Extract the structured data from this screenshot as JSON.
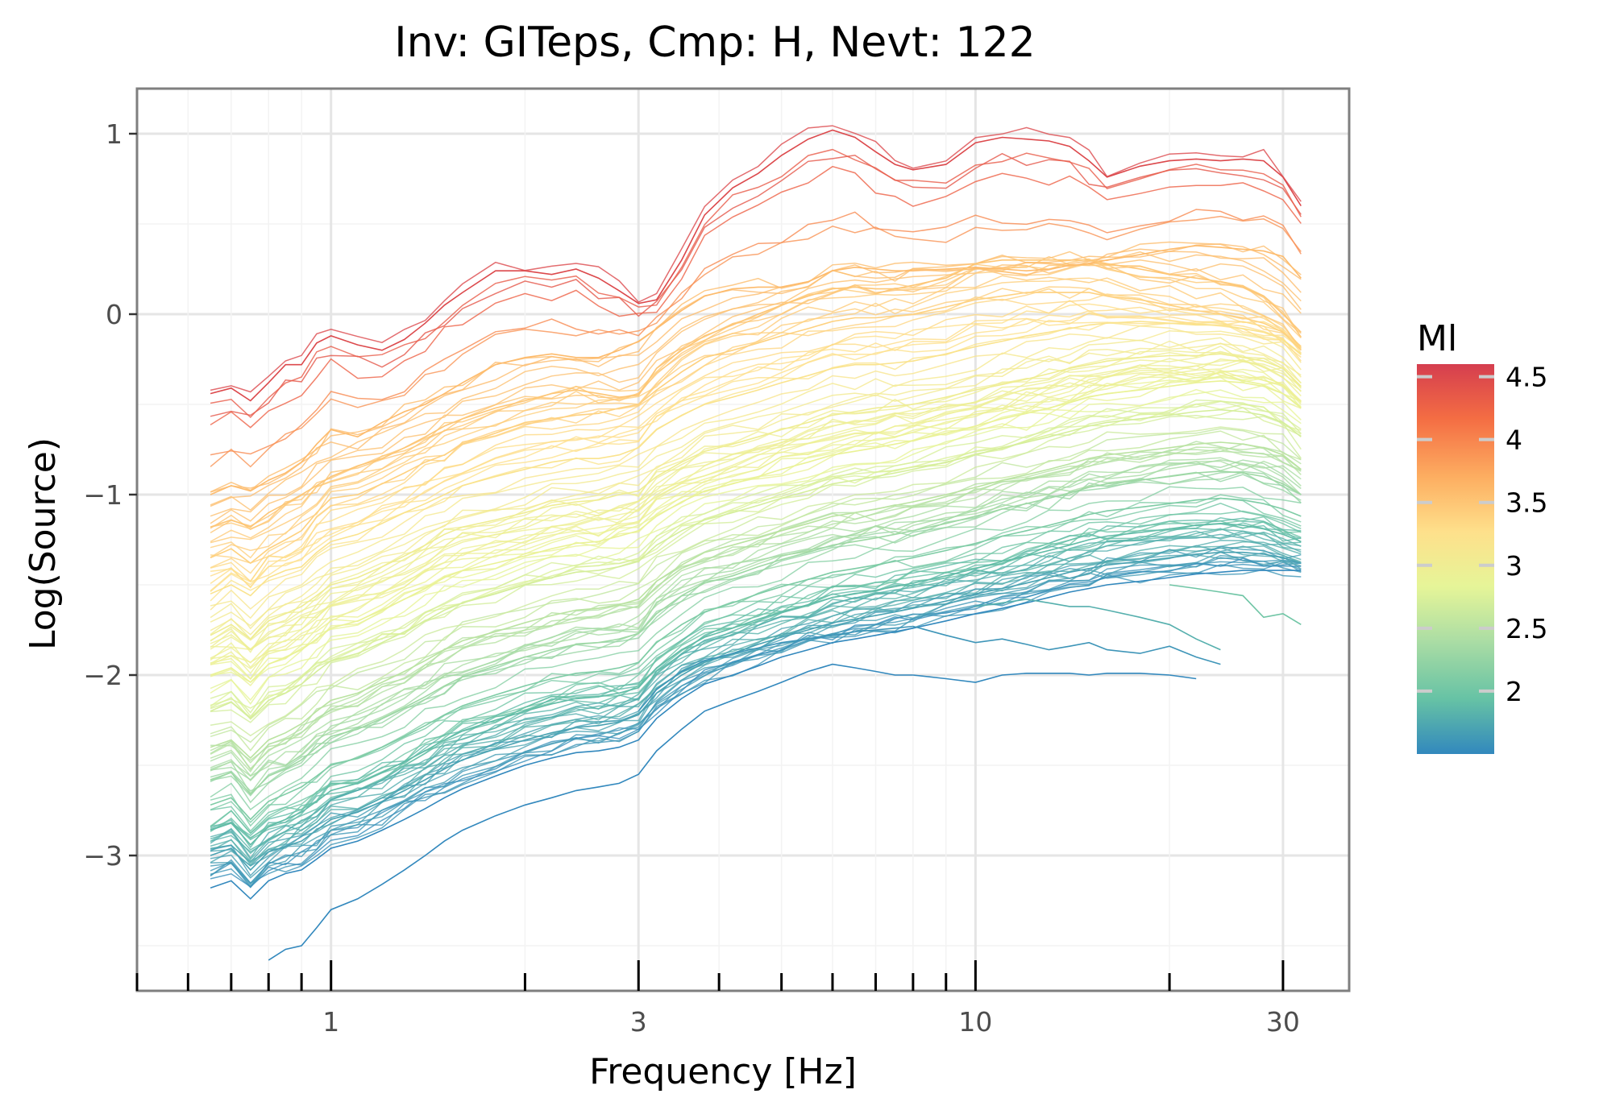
{
  "chart_data": {
    "type": "line",
    "title": "Inv: GITeps, Cmp: H, Nevt: 122",
    "xlabel": "Frequency [Hz]",
    "ylabel": "Log(Source)",
    "x_scale": "log10",
    "xlim": [
      0.5,
      38
    ],
    "ylim": [
      -3.75,
      1.25
    ],
    "x_ticks": [
      1,
      3,
      10,
      30
    ],
    "x_tick_labels": [
      "1",
      "3",
      "10",
      "30"
    ],
    "y_ticks": [
      1,
      0,
      -1,
      -2,
      -3
    ],
    "y_tick_labels": [
      "1",
      "0",
      "−1",
      "−2",
      "−3"
    ],
    "grid": true,
    "frequency_hz": [
      0.65,
      0.7,
      0.75,
      0.8,
      0.85,
      0.9,
      0.95,
      1.0,
      1.1,
      1.2,
      1.3,
      1.4,
      1.5,
      1.6,
      1.8,
      2.0,
      2.2,
      2.4,
      2.6,
      2.8,
      3.0,
      3.2,
      3.5,
      3.8,
      4.2,
      4.6,
      5.0,
      5.5,
      6.0,
      6.5,
      7.0,
      7.5,
      8.0,
      9.0,
      10.0,
      11.0,
      12.0,
      13.0,
      14.0,
      15.0,
      16.0,
      18.0,
      20.0,
      22.0,
      24.0,
      26.0,
      28.0,
      30.0,
      32.0
    ],
    "series_count": 122,
    "series": [
      {
        "ml": 4.5,
        "values": [
          -0.44,
          -0.41,
          -0.48,
          -0.38,
          -0.28,
          -0.28,
          -0.16,
          -0.12,
          -0.17,
          -0.2,
          -0.14,
          -0.05,
          0.05,
          0.12,
          0.24,
          0.24,
          0.22,
          0.25,
          0.2,
          0.13,
          0.06,
          0.08,
          0.3,
          0.55,
          0.7,
          0.78,
          0.88,
          0.97,
          1.02,
          0.98,
          0.9,
          0.83,
          0.8,
          0.83,
          0.95,
          0.98,
          0.97,
          0.96,
          0.93,
          0.85,
          0.76,
          0.82,
          0.85,
          0.86,
          0.85,
          0.86,
          0.85,
          0.76,
          0.6
        ]
      },
      {
        "ml": 3.6,
        "values": [
          -1.0,
          -0.95,
          -0.98,
          -0.92,
          -0.88,
          -0.82,
          -0.72,
          -0.64,
          -0.68,
          -0.6,
          -0.54,
          -0.5,
          -0.44,
          -0.38,
          -0.28,
          -0.24,
          -0.22,
          -0.24,
          -0.24,
          -0.2,
          -0.15,
          -0.08,
          0.02,
          0.1,
          0.14,
          0.15,
          0.15,
          0.18,
          0.24,
          0.26,
          0.25,
          0.24,
          0.24,
          0.25,
          0.26,
          0.25,
          0.24,
          0.25,
          0.27,
          0.28,
          0.3,
          0.33,
          0.36,
          0.38,
          0.37,
          0.36,
          0.35,
          0.32,
          0.2
        ]
      },
      {
        "ml": 3.5,
        "values": [
          -1.18,
          -1.14,
          -1.18,
          -1.1,
          -1.05,
          -1.0,
          -0.95,
          -0.9,
          -0.84,
          -0.8,
          -0.74,
          -0.68,
          -0.62,
          -0.58,
          -0.52,
          -0.48,
          -0.44,
          -0.42,
          -0.44,
          -0.46,
          -0.45,
          -0.3,
          -0.2,
          -0.12,
          -0.06,
          0.0,
          0.05,
          0.1,
          0.14,
          0.15,
          0.14,
          0.14,
          0.16,
          0.2,
          0.28,
          0.3,
          0.3,
          0.3,
          0.3,
          0.3,
          0.28,
          0.25,
          0.22,
          0.2,
          0.18,
          0.15,
          0.1,
          0.0,
          -0.1
        ]
      },
      {
        "ml": 3.4,
        "values": [
          -1.35,
          -1.3,
          -1.38,
          -1.3,
          -1.25,
          -1.2,
          -1.1,
          -1.02,
          -1.0,
          -0.94,
          -0.88,
          -0.82,
          -0.78,
          -0.72,
          -0.66,
          -0.6,
          -0.58,
          -0.56,
          -0.55,
          -0.52,
          -0.5,
          -0.42,
          -0.32,
          -0.24,
          -0.2,
          -0.16,
          -0.12,
          -0.08,
          -0.04,
          -0.02,
          -0.02,
          -0.01,
          0.0,
          0.04,
          0.08,
          0.1,
          0.12,
          0.12,
          0.12,
          0.12,
          0.1,
          0.08,
          0.05,
          0.02,
          0.0,
          -0.02,
          -0.05,
          -0.1,
          -0.2
        ]
      },
      {
        "ml": 3.2,
        "values": [
          -1.55,
          -1.5,
          -1.56,
          -1.46,
          -1.42,
          -1.4,
          -1.32,
          -1.26,
          -1.22,
          -1.16,
          -1.1,
          -1.05,
          -1.0,
          -0.95,
          -0.9,
          -0.86,
          -0.82,
          -0.8,
          -0.8,
          -0.78,
          -0.74,
          -0.64,
          -0.56,
          -0.5,
          -0.46,
          -0.42,
          -0.38,
          -0.34,
          -0.3,
          -0.28,
          -0.28,
          -0.27,
          -0.26,
          -0.22,
          -0.18,
          -0.15,
          -0.12,
          -0.1,
          -0.08,
          -0.06,
          -0.05,
          -0.04,
          -0.05,
          -0.06,
          -0.06,
          -0.08,
          -0.1,
          -0.14,
          -0.22
        ]
      },
      {
        "ml": 3.0,
        "values": [
          -1.78,
          -1.72,
          -1.8,
          -1.7,
          -1.66,
          -1.62,
          -1.56,
          -1.5,
          -1.46,
          -1.4,
          -1.34,
          -1.28,
          -1.22,
          -1.18,
          -1.14,
          -1.1,
          -1.06,
          -1.04,
          -1.03,
          -1.0,
          -0.98,
          -0.9,
          -0.82,
          -0.76,
          -0.72,
          -0.68,
          -0.64,
          -0.6,
          -0.56,
          -0.54,
          -0.52,
          -0.51,
          -0.5,
          -0.46,
          -0.42,
          -0.39,
          -0.36,
          -0.33,
          -0.3,
          -0.28,
          -0.26,
          -0.24,
          -0.23,
          -0.23,
          -0.22,
          -0.24,
          -0.26,
          -0.3,
          -0.4
        ]
      },
      {
        "ml": 2.9,
        "values": [
          -2.0,
          -1.96,
          -2.04,
          -1.94,
          -1.9,
          -1.86,
          -1.8,
          -1.74,
          -1.7,
          -1.64,
          -1.58,
          -1.52,
          -1.46,
          -1.42,
          -1.38,
          -1.34,
          -1.3,
          -1.27,
          -1.26,
          -1.23,
          -1.2,
          -1.12,
          -1.04,
          -0.98,
          -0.94,
          -0.9,
          -0.86,
          -0.82,
          -0.78,
          -0.76,
          -0.74,
          -0.72,
          -0.7,
          -0.66,
          -0.62,
          -0.58,
          -0.55,
          -0.52,
          -0.49,
          -0.46,
          -0.44,
          -0.42,
          -0.4,
          -0.38,
          -0.37,
          -0.38,
          -0.4,
          -0.44,
          -0.52
        ]
      },
      {
        "ml": 2.7,
        "values": [
          -2.2,
          -2.15,
          -2.24,
          -2.14,
          -2.1,
          -2.05,
          -1.98,
          -1.92,
          -1.88,
          -1.82,
          -1.76,
          -1.7,
          -1.64,
          -1.6,
          -1.55,
          -1.5,
          -1.46,
          -1.43,
          -1.42,
          -1.4,
          -1.37,
          -1.28,
          -1.2,
          -1.14,
          -1.1,
          -1.06,
          -1.02,
          -0.98,
          -0.94,
          -0.92,
          -0.9,
          -0.88,
          -0.86,
          -0.82,
          -0.78,
          -0.74,
          -0.71,
          -0.68,
          -0.65,
          -0.62,
          -0.6,
          -0.58,
          -0.56,
          -0.54,
          -0.53,
          -0.54,
          -0.56,
          -0.6,
          -0.68
        ]
      },
      {
        "ml": 2.5,
        "values": [
          -2.4,
          -2.36,
          -2.46,
          -2.36,
          -2.32,
          -2.27,
          -2.2,
          -2.14,
          -2.1,
          -2.04,
          -1.98,
          -1.92,
          -1.86,
          -1.81,
          -1.76,
          -1.71,
          -1.67,
          -1.64,
          -1.63,
          -1.61,
          -1.58,
          -1.48,
          -1.39,
          -1.32,
          -1.28,
          -1.24,
          -1.2,
          -1.16,
          -1.12,
          -1.1,
          -1.08,
          -1.06,
          -1.04,
          -1.0,
          -0.96,
          -0.92,
          -0.89,
          -0.86,
          -0.83,
          -0.8,
          -0.78,
          -0.76,
          -0.74,
          -0.72,
          -0.71,
          -0.72,
          -0.74,
          -0.78,
          -0.86
        ]
      },
      {
        "ml": 2.3,
        "values": [
          -2.58,
          -2.54,
          -2.66,
          -2.56,
          -2.52,
          -2.47,
          -2.4,
          -2.34,
          -2.3,
          -2.24,
          -2.18,
          -2.12,
          -2.06,
          -2.01,
          -1.95,
          -1.9,
          -1.86,
          -1.83,
          -1.82,
          -1.8,
          -1.77,
          -1.66,
          -1.56,
          -1.49,
          -1.45,
          -1.4,
          -1.36,
          -1.32,
          -1.28,
          -1.26,
          -1.24,
          -1.22,
          -1.2,
          -1.16,
          -1.12,
          -1.08,
          -1.05,
          -1.02,
          -0.99,
          -0.96,
          -0.94,
          -0.92,
          -0.9,
          -0.88,
          -0.87,
          -0.88,
          -0.9,
          -0.94,
          -1.0
        ]
      },
      {
        "ml": 2.1,
        "values": [
          -2.72,
          -2.68,
          -2.8,
          -2.7,
          -2.66,
          -2.62,
          -2.56,
          -2.5,
          -2.46,
          -2.4,
          -2.34,
          -2.28,
          -2.22,
          -2.17,
          -2.11,
          -2.06,
          -2.02,
          -1.99,
          -1.98,
          -1.96,
          -1.93,
          -1.82,
          -1.72,
          -1.65,
          -1.6,
          -1.55,
          -1.51,
          -1.47,
          -1.43,
          -1.41,
          -1.39,
          -1.37,
          -1.35,
          -1.31,
          -1.27,
          -1.23,
          -1.2,
          -1.17,
          -1.14,
          -1.11,
          -1.09,
          -1.07,
          -1.05,
          -1.03,
          -1.02,
          -1.03,
          -1.05,
          -1.08,
          -1.12
        ]
      },
      {
        "ml": 1.9,
        "values": [
          -2.86,
          -2.82,
          -2.94,
          -2.84,
          -2.8,
          -2.76,
          -2.7,
          -2.64,
          -2.6,
          -2.54,
          -2.48,
          -2.42,
          -2.36,
          -2.31,
          -2.25,
          -2.2,
          -2.16,
          -2.13,
          -2.12,
          -2.1,
          -2.07,
          -1.96,
          -1.86,
          -1.79,
          -1.74,
          -1.69,
          -1.65,
          -1.61,
          -1.57,
          -1.55,
          -1.53,
          -1.51,
          -1.49,
          -1.45,
          -1.41,
          -1.37,
          -1.34,
          -1.31,
          -1.28,
          -1.25,
          -1.23,
          -1.21,
          -1.19,
          -1.17,
          -1.16,
          -1.17,
          -1.19,
          -1.22,
          -1.26
        ]
      },
      {
        "ml": 1.7,
        "values": [
          -3.0,
          -2.96,
          -3.08,
          -2.98,
          -2.95,
          -2.92,
          -2.86,
          -2.8,
          -2.76,
          -2.7,
          -2.64,
          -2.58,
          -2.52,
          -2.47,
          -2.41,
          -2.36,
          -2.32,
          -2.29,
          -2.28,
          -2.26,
          -2.22,
          -2.1,
          -2.0,
          -1.93,
          -1.88,
          -1.83,
          -1.79,
          -1.75,
          -1.71,
          -1.69,
          -1.67,
          -1.65,
          -1.63,
          -1.59,
          -1.55,
          -1.52,
          -1.49,
          -1.46,
          -1.43,
          -1.41,
          -1.39,
          -1.37,
          -1.35,
          -1.33,
          -1.32,
          -1.32,
          -1.33,
          -1.35,
          -1.38
        ]
      },
      {
        "ml": 1.5,
        "values": [
          -3.18,
          -3.14,
          -3.24,
          -3.14,
          -3.1,
          -3.08,
          -3.02,
          -2.96,
          -2.92,
          -2.86,
          -2.8,
          -2.74,
          -2.68,
          -2.63,
          -2.56,
          -2.5,
          -2.46,
          -2.43,
          -2.42,
          -2.4,
          -2.36,
          -2.24,
          -2.13,
          -2.05,
          -2.0,
          -1.95,
          -1.9,
          -1.86,
          -1.82,
          -1.8,
          -1.78,
          -1.76,
          -1.74,
          -1.7,
          -1.66,
          -1.63,
          -1.6,
          -1.57,
          -1.54,
          -1.52,
          -1.5,
          -1.48,
          -1.46,
          -1.44,
          -1.43,
          -1.42,
          -1.42,
          -1.42,
          -1.42
        ]
      },
      {
        "ml": 1.5,
        "values": [
          null,
          null,
          null,
          -3.58,
          -3.52,
          -3.5,
          -3.4,
          -3.3,
          -3.24,
          -3.16,
          -3.08,
          -3.0,
          -2.92,
          -2.86,
          -2.78,
          -2.72,
          -2.68,
          -2.64,
          -2.62,
          -2.6,
          -2.55,
          -2.42,
          -2.3,
          -2.2,
          -2.14,
          -2.09,
          -2.04,
          -1.98,
          -1.94,
          -1.96,
          -1.98,
          -2.0,
          -2.0,
          -2.02,
          -2.04,
          -2.0,
          -1.99,
          -1.99,
          -1.99,
          -2.0,
          -1.99,
          -1.99,
          -2.0,
          -2.02,
          null,
          null,
          null,
          null,
          null
        ]
      },
      {
        "ml": 1.6,
        "values": [
          null,
          null,
          null,
          null,
          null,
          null,
          null,
          null,
          null,
          null,
          null,
          null,
          null,
          null,
          null,
          null,
          null,
          null,
          null,
          null,
          -2.2,
          -2.08,
          -1.98,
          -1.92,
          -1.88,
          -1.85,
          -1.82,
          -1.8,
          -1.78,
          -1.76,
          -1.75,
          -1.74,
          -1.73,
          -1.78,
          -1.82,
          -1.8,
          -1.83,
          -1.86,
          -1.84,
          -1.82,
          -1.86,
          -1.88,
          -1.84,
          -1.9,
          -1.94,
          null,
          null,
          null,
          null
        ]
      },
      {
        "ml": 1.8,
        "values": [
          null,
          null,
          null,
          null,
          null,
          null,
          null,
          null,
          null,
          null,
          null,
          null,
          null,
          null,
          null,
          null,
          null,
          null,
          null,
          null,
          null,
          null,
          null,
          null,
          null,
          null,
          null,
          null,
          null,
          null,
          null,
          null,
          null,
          null,
          -1.62,
          -1.6,
          -1.58,
          -1.6,
          -1.62,
          -1.62,
          -1.64,
          -1.68,
          -1.72,
          -1.8,
          -1.86,
          null,
          null,
          null,
          null
        ]
      },
      {
        "ml": 2.0,
        "values": [
          null,
          null,
          null,
          null,
          null,
          null,
          null,
          null,
          null,
          null,
          null,
          null,
          null,
          null,
          null,
          null,
          null,
          null,
          null,
          null,
          null,
          null,
          null,
          null,
          null,
          null,
          null,
          null,
          null,
          null,
          null,
          null,
          null,
          null,
          null,
          null,
          null,
          null,
          null,
          null,
          null,
          null,
          -1.5,
          -1.52,
          -1.54,
          -1.56,
          -1.68,
          -1.66,
          -1.72
        ]
      }
    ]
  },
  "legend": {
    "title": "Ml",
    "labels": [
      "4.5",
      "4",
      "3.5",
      "3",
      "2.5",
      "2"
    ],
    "values": [
      4.5,
      4.0,
      3.5,
      3.0,
      2.5,
      2.0
    ],
    "range": [
      1.5,
      4.6
    ],
    "colors": [
      "#3288bd",
      "#66c2a5",
      "#abdda4",
      "#e6f598",
      "#fee08b",
      "#fdae61",
      "#f46d43",
      "#d53e4f"
    ]
  }
}
